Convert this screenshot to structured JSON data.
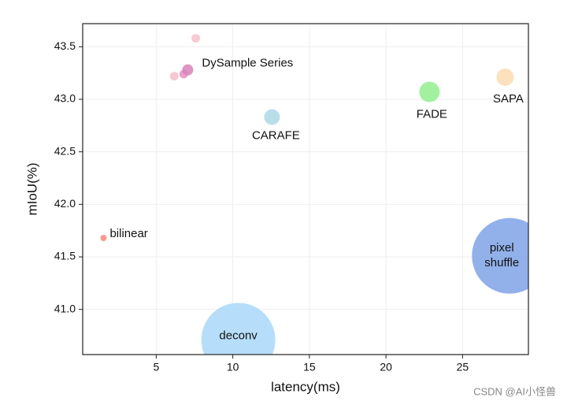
{
  "chart_data": {
    "type": "scatter",
    "xlabel": "latency(ms)",
    "ylabel": "mIoU(%)",
    "xlim": [
      0.2,
      29.3
    ],
    "ylim": [
      40.57,
      43.72
    ],
    "xticks": [
      5,
      10,
      15,
      20,
      25
    ],
    "yticks": [
      {
        "value": 41.0,
        "label": "41.0"
      },
      {
        "value": 41.5,
        "label": "41.5"
      },
      {
        "value": 42.0,
        "label": "42.0"
      },
      {
        "value": 42.5,
        "label": "42.5"
      },
      {
        "value": 43.0,
        "label": "43.0"
      },
      {
        "value": 43.5,
        "label": "43.5"
      }
    ],
    "grid": true,
    "series": [
      {
        "name": "bilinear",
        "x": [
          1.56
        ],
        "values": [
          41.68
        ],
        "sizes": [
          16
        ],
        "colors": [
          "#f4897b"
        ]
      },
      {
        "name": "DySample Series",
        "x": [
          7.58,
          6.18,
          6.8,
          7.06
        ],
        "values": [
          43.58,
          43.22,
          43.24,
          43.28
        ],
        "sizes": [
          30,
          30,
          30,
          49
        ],
        "colors": [
          "#f9c0cb",
          "#f6bccb",
          "#e98ec2",
          "#d982b8"
        ]
      },
      {
        "name": "CARAFE",
        "x": [
          12.56
        ],
        "values": [
          42.83
        ],
        "sizes": [
          100
        ],
        "colors": [
          "#add8e6"
        ]
      },
      {
        "name": "FADE",
        "x": [
          22.84
        ],
        "values": [
          43.07
        ],
        "sizes": [
          169
        ],
        "colors": [
          "#90ee90"
        ]
      },
      {
        "name": "SAPA",
        "x": [
          27.78
        ],
        "values": [
          43.21
        ],
        "sizes": [
          121
        ],
        "colors": [
          "#fddcb0"
        ]
      },
      {
        "name": "pixel shuffle",
        "x": [
          28.08
        ],
        "values": [
          41.51
        ],
        "sizes": [
          2304
        ],
        "colors": [
          "#7fa3e8"
        ]
      },
      {
        "name": "deconv",
        "x": [
          10.36
        ],
        "values": [
          40.71
        ],
        "sizes": [
          2209
        ],
        "colors": [
          "#a9d8f9"
        ]
      }
    ],
    "watermark": "CSDN @AI小怪兽"
  }
}
